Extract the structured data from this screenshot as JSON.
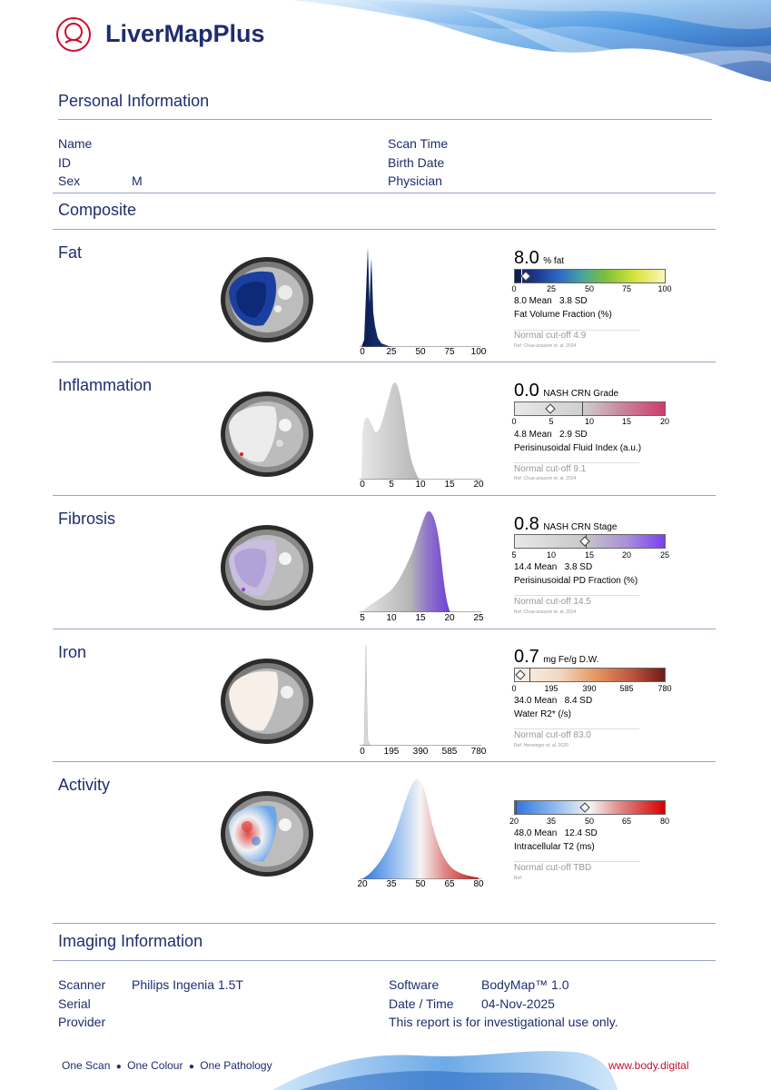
{
  "header": {
    "brand": "LiverMapPlus"
  },
  "personal": {
    "title": "Personal Information",
    "labels": {
      "name": "Name",
      "id": "ID",
      "sex": "Sex",
      "scan_time": "Scan Time",
      "birth_date": "Birth Date",
      "physician": "Physician"
    },
    "values": {
      "sex": "M"
    }
  },
  "composite": {
    "title": "Composite"
  },
  "metrics": [
    {
      "label": "Fat",
      "value": "8.0",
      "unit": "% fat",
      "mean": "8.0 Mean",
      "sd": "3.8 SD",
      "description": "Fat Volume Fraction (%)",
      "cutoff_label": "Normal cut-off",
      "cutoff": "4.9",
      "ref": "Ref: Chua-anusorn et. al. 2024",
      "ticks": [
        "0",
        "25",
        "50",
        "75",
        "100"
      ]
    },
    {
      "label": "Inflammation",
      "value": "0.0",
      "unit": "NASH CRN Grade",
      "mean": "4.8 Mean",
      "sd": "2.9 SD",
      "description": "Perisinusoidal Fluid Index (a.u.)",
      "cutoff_label": "Normal cut-off",
      "cutoff": "9.1",
      "ref": "Ref: Chua-anusorn et. al. 2024",
      "ticks": [
        "0",
        "5",
        "10",
        "15",
        "20"
      ]
    },
    {
      "label": "Fibrosis",
      "value": "0.8",
      "unit": "NASH CRN Stage",
      "mean": "14.4 Mean",
      "sd": "3.8 SD",
      "description": "Perisinusoidal PD Fraction (%)",
      "cutoff_label": "Normal cut-off",
      "cutoff": "14.5",
      "ref": "Ref: Chua-anusorn et. al. 2024",
      "ticks": [
        "5",
        "10",
        "15",
        "20",
        "25"
      ]
    },
    {
      "label": "Iron",
      "value": "0.7",
      "unit": "mg Fe/g D.W.",
      "mean": "34.0 Mean",
      "sd": "8.4 SD",
      "description": "Water R2* (/s)",
      "cutoff_label": "Normal cut-off",
      "cutoff": "83.0",
      "ref": "Ref: Henninger et. al. 2020",
      "ticks": [
        "0",
        "195",
        "390",
        "585",
        "780"
      ]
    },
    {
      "label": "Activity",
      "value": "",
      "unit": "",
      "mean": "48.0 Mean",
      "sd": "12.4 SD",
      "description": "Intracellular T2 (ms)",
      "cutoff_label": "Normal cut-off",
      "cutoff": "TBD",
      "ref": "Ref:",
      "ticks": [
        "20",
        "35",
        "50",
        "65",
        "80"
      ]
    }
  ],
  "gauge_markers": {
    "fat": 0.08,
    "inflammation": 0.24,
    "fibrosis": 0.47,
    "iron": 0.04,
    "activity": 0.47
  },
  "imaging": {
    "title": "Imaging Information",
    "labels": {
      "scanner": "Scanner",
      "serial": "Serial",
      "provider": "Provider",
      "software": "Software",
      "datetime": "Date / Time"
    },
    "values": {
      "scanner": "Philips Ingenia 1.5T",
      "software": "BodyMap™ 1.0",
      "datetime": "04-Nov-2025"
    },
    "note": "This report is for investigational use only."
  },
  "footer": {
    "tagline_1": "One Scan",
    "tagline_2": "One Colour",
    "tagline_3": "One Pathology",
    "website": "www.body.digital"
  },
  "colors": {
    "navy": "#1f2d6e",
    "accent_red": "#c8102e"
  }
}
